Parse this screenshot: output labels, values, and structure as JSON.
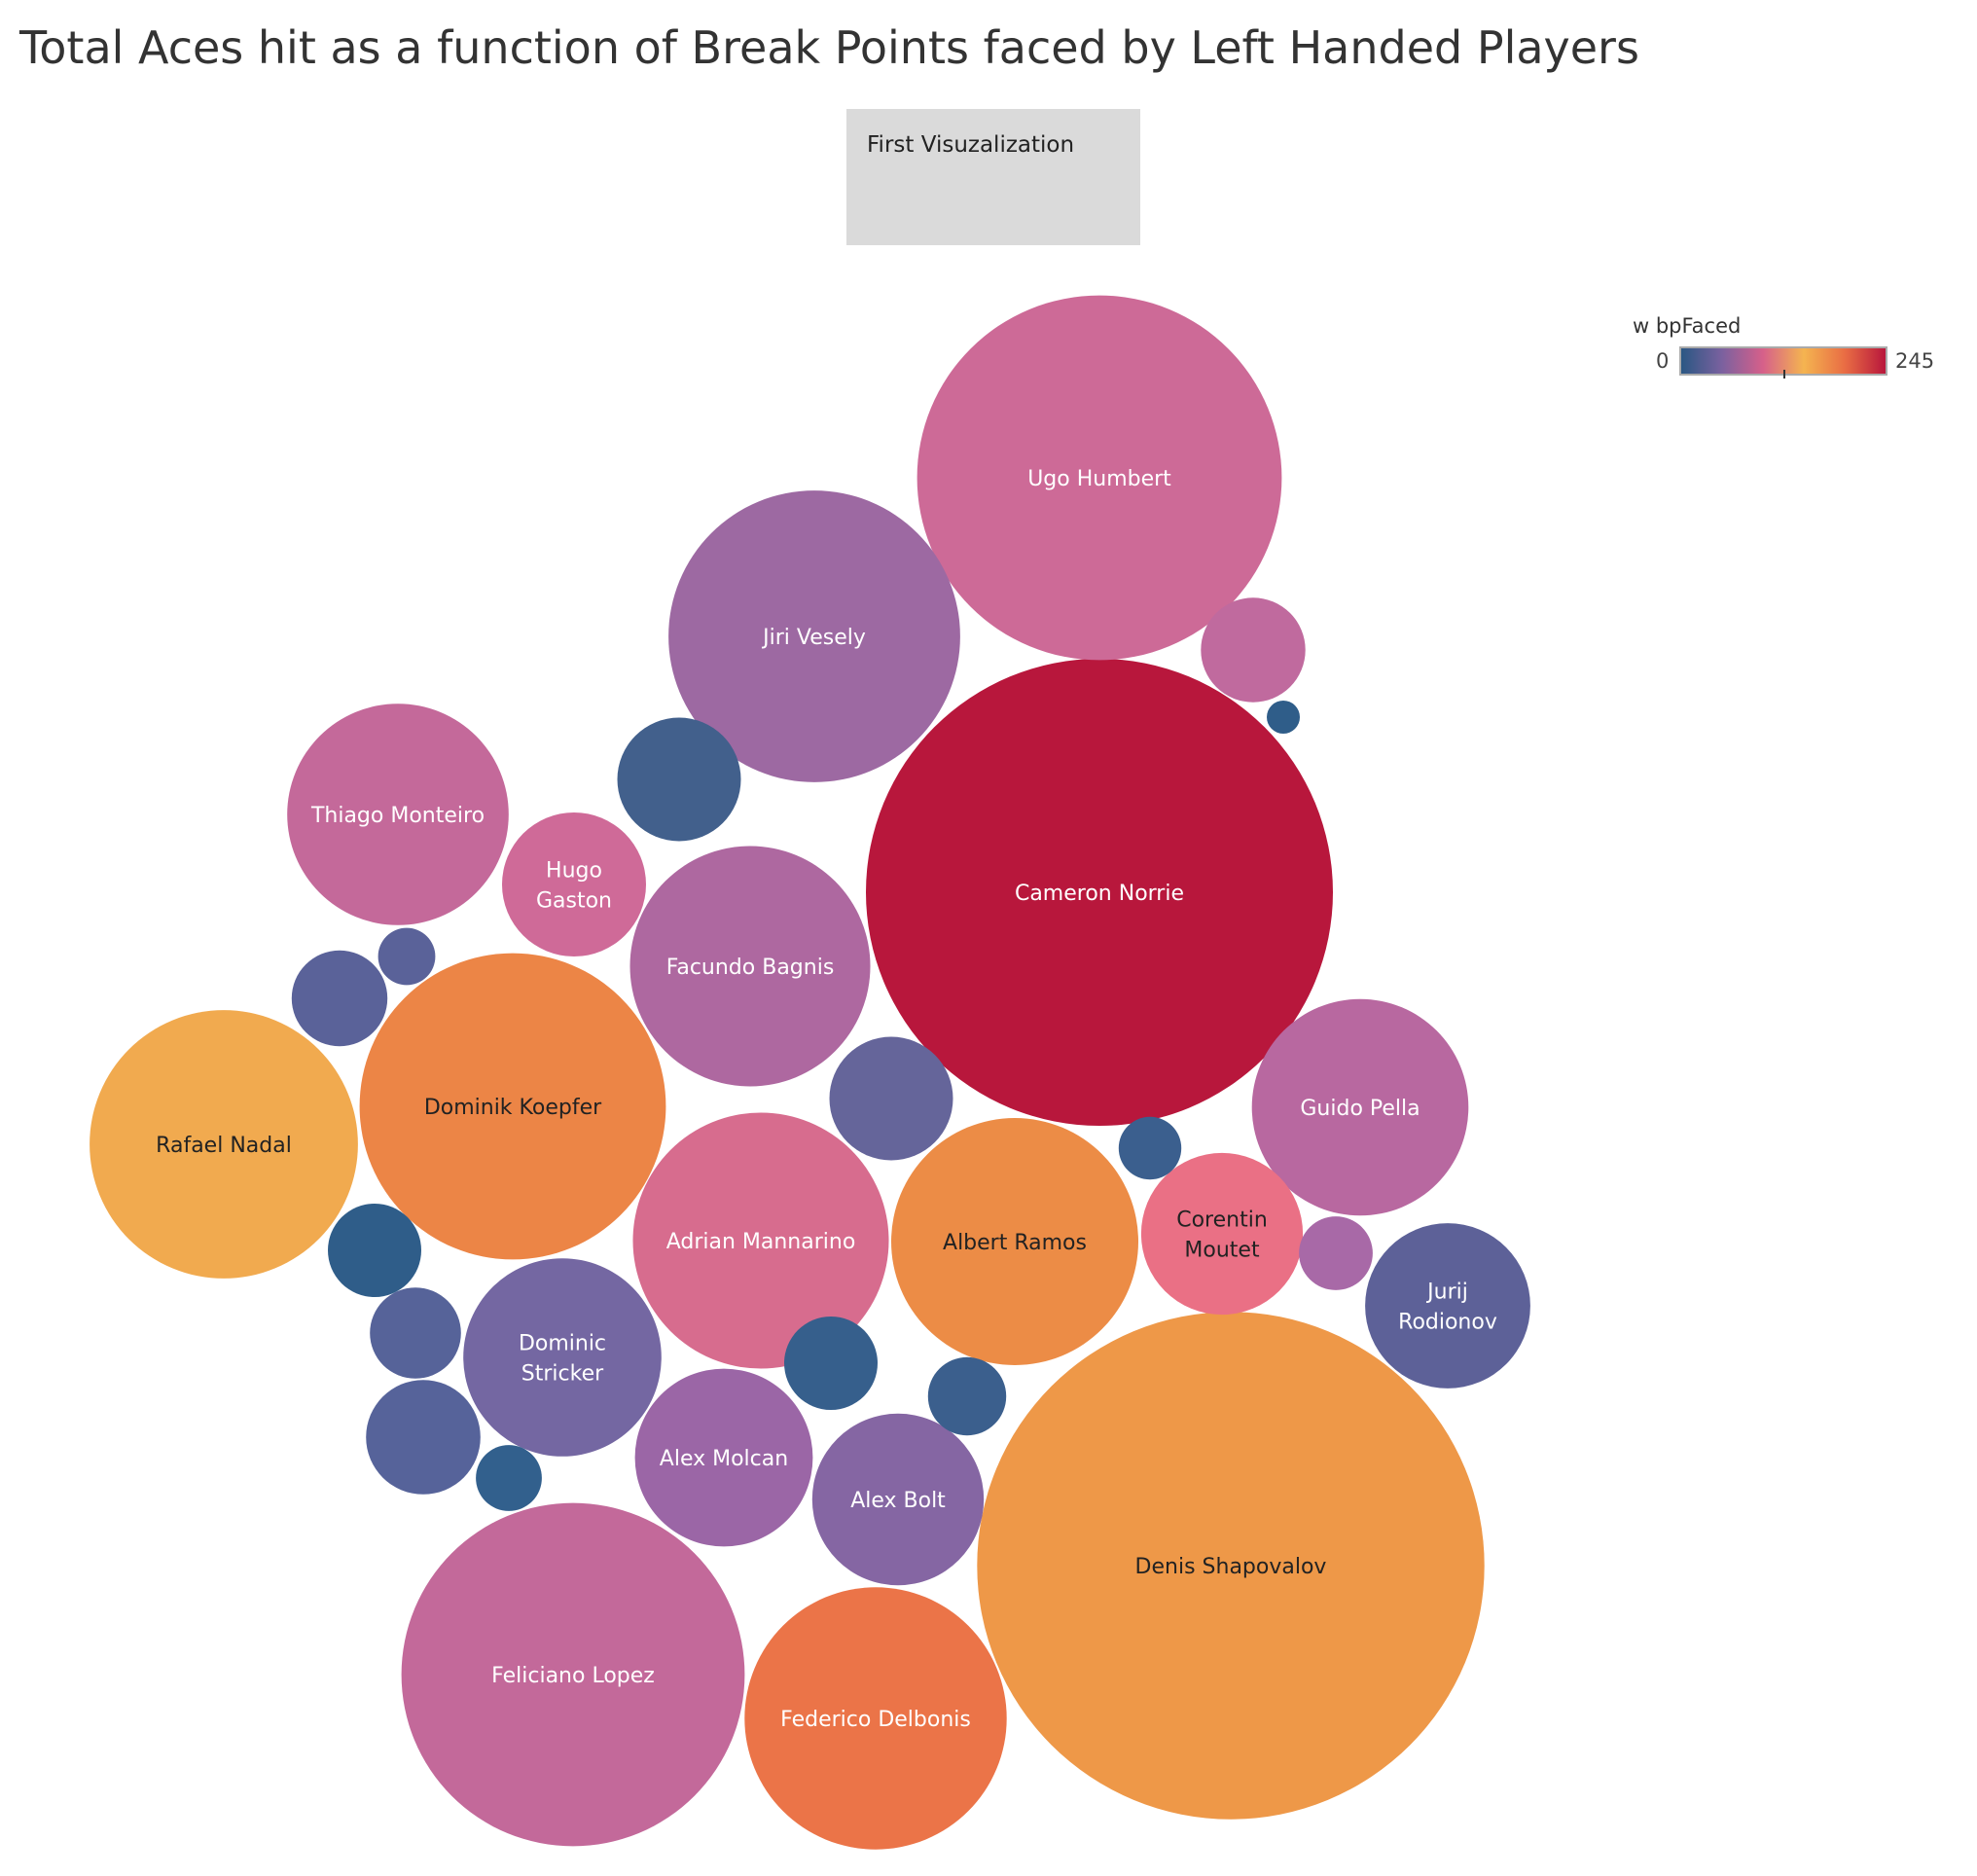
{
  "title": "Total Aces hit as a function of Break Points faced by Left Handed Players",
  "tag_box": {
    "label": "First Visuzalization"
  },
  "legend": {
    "title": "w bpFaced",
    "min_label": "0",
    "max_label": "245"
  },
  "colors": {
    "low": "#2a5783",
    "mid_purple": "#7b619f",
    "pink": "#d6608a",
    "orange": "#f4b450",
    "high": "#b8173c"
  },
  "chart_data": {
    "type": "bubble",
    "title": "Total Aces hit as a function of Break Points faced by Left Handed Players",
    "size_measure": "Total Aces",
    "color_measure": "w bpFaced",
    "color_range": [
      0,
      245
    ],
    "players": [
      {
        "name": "Cameron Norrie",
        "label_lines": [
          "Cameron Norrie"
        ],
        "aces": 1000,
        "bp_faced": 245,
        "color": "#b8173c",
        "text_color": "#ffffff"
      },
      {
        "name": "Denis Shapovalov",
        "label_lines": [
          "Denis Shapovalov"
        ],
        "aces": 1180,
        "bp_faced": 175,
        "color": "#ee9848",
        "text_color": "#222222"
      },
      {
        "name": "Ugo Humbert",
        "label_lines": [
          "Ugo Humbert"
        ],
        "aces": 610,
        "bp_faced": 105,
        "color": "#cd6a97",
        "text_color": "#ffffff"
      },
      {
        "name": "Jiri Vesely",
        "label_lines": [
          "Jiri Vesely"
        ],
        "aces": 390,
        "bp_faced": 75,
        "color": "#9d69a2",
        "text_color": "#ffffff"
      },
      {
        "name": "Feliciano Lopez",
        "label_lines": [
          "Feliciano Lopez"
        ],
        "aces": 540,
        "bp_faced": 100,
        "color": "#c3699a",
        "text_color": "#ffffff"
      },
      {
        "name": "Dominik Koepfer",
        "label_lines": [
          "Dominik Koepfer"
        ],
        "aces": 430,
        "bp_faced": 190,
        "color": "#ec8546",
        "text_color": "#222222"
      },
      {
        "name": "Adrian Mannarino",
        "label_lines": [
          "Adrian Mannarino"
        ],
        "aces": 300,
        "bp_faced": 115,
        "color": "#d76c8e",
        "text_color": "#ffffff"
      },
      {
        "name": "Albert Ramos",
        "label_lines": [
          "Albert Ramos"
        ],
        "aces": 280,
        "bp_faced": 185,
        "color": "#ec8c46",
        "text_color": "#222222"
      },
      {
        "name": "Rafael Nadal",
        "label_lines": [
          "Rafael Nadal"
        ],
        "aces": 330,
        "bp_faced": 150,
        "color": "#f1aa4f",
        "text_color": "#222222"
      },
      {
        "name": "Thiago Monteiro",
        "label_lines": [
          "Thiago Monteiro"
        ],
        "aces": 225,
        "bp_faced": 100,
        "color": "#c4699a",
        "text_color": "#ffffff"
      },
      {
        "name": "Facundo Bagnis",
        "label_lines": [
          "Facundo Bagnis"
        ],
        "aces": 265,
        "bp_faced": 85,
        "color": "#ae68a0",
        "text_color": "#ffffff"
      },
      {
        "name": "Federico Delbonis",
        "label_lines": [
          "Federico Delbonis"
        ],
        "aces": 315,
        "bp_faced": 205,
        "color": "#eb7448",
        "text_color": "#ffffff"
      },
      {
        "name": "Guido Pella",
        "label_lines": [
          "Guido Pella"
        ],
        "aces": 215,
        "bp_faced": 90,
        "color": "#b868a0",
        "text_color": "#ffffff"
      },
      {
        "name": "Dominic Stricker",
        "label_lines": [
          "Dominic",
          "Stricker"
        ],
        "aces": 180,
        "bp_faced": 45,
        "color": "#7467a2",
        "text_color": "#ffffff"
      },
      {
        "name": "Alex Molcan",
        "label_lines": [
          "Alex Molcan"
        ],
        "aces": 145,
        "bp_faced": 65,
        "color": "#9b66a6",
        "text_color": "#ffffff"
      },
      {
        "name": "Alex Bolt",
        "label_lines": [
          "Alex Bolt"
        ],
        "aces": 135,
        "bp_faced": 50,
        "color": "#8566a3",
        "text_color": "#ffffff"
      },
      {
        "name": "Jurij Rodionov",
        "label_lines": [
          "Jurij",
          "Rodionov"
        ],
        "aces": 125,
        "bp_faced": 35,
        "color": "#5d6198",
        "text_color": "#ffffff"
      },
      {
        "name": "Corentin Moutet",
        "label_lines": [
          "Corentin",
          "Moutet"
        ],
        "aces": 120,
        "bp_faced": 130,
        "color": "#ea7085",
        "text_color": "#222222"
      },
      {
        "name": "Hugo Gaston",
        "label_lines": [
          "Hugo",
          "Gaston"
        ],
        "aces": 95,
        "bp_faced": 100,
        "color": "#cf6a98",
        "text_color": "#ffffff"
      },
      {
        "name": "",
        "label_lines": [],
        "aces": 70,
        "bp_faced": 15,
        "color": "#42608c",
        "text_color": "#ffffff"
      },
      {
        "name": "",
        "label_lines": [],
        "aces": 70,
        "bp_faced": 30,
        "color": "#65659a",
        "text_color": "#ffffff"
      },
      {
        "name": "",
        "label_lines": [],
        "aces": 60,
        "bp_faced": 25,
        "color": "#56639a",
        "text_color": "#ffffff"
      },
      {
        "name": "",
        "label_lines": [],
        "aces": 50,
        "bp_faced": 90,
        "color": "#c06a9e",
        "text_color": "#ffffff"
      },
      {
        "name": "",
        "label_lines": [],
        "aces": 42,
        "bp_faced": 25,
        "color": "#5a6299",
        "text_color": "#ffffff"
      },
      {
        "name": "",
        "label_lines": [],
        "aces": 40,
        "bp_faced": 5,
        "color": "#2f5d89",
        "text_color": "#ffffff"
      },
      {
        "name": "",
        "label_lines": [],
        "aces": 40,
        "bp_faced": 10,
        "color": "#365f8c",
        "text_color": "#ffffff"
      },
      {
        "name": "",
        "label_lines": [],
        "aces": 38,
        "bp_faced": 25,
        "color": "#566399",
        "text_color": "#ffffff"
      },
      {
        "name": "",
        "label_lines": [],
        "aces": 28,
        "bp_faced": 10,
        "color": "#3b5f8d",
        "text_color": "#ffffff"
      },
      {
        "name": "",
        "label_lines": [],
        "aces": 25,
        "bp_faced": 85,
        "color": "#a869a7",
        "text_color": "#ffffff"
      },
      {
        "name": "",
        "label_lines": [],
        "aces": 20,
        "bp_faced": 5,
        "color": "#32608d",
        "text_color": "#ffffff"
      },
      {
        "name": "",
        "label_lines": [],
        "aces": 18,
        "bp_faced": 10,
        "color": "#3b5f8e",
        "text_color": "#ffffff"
      },
      {
        "name": "",
        "label_lines": [],
        "aces": 15,
        "bp_faced": 30,
        "color": "#5a6299",
        "text_color": "#ffffff"
      },
      {
        "name": "",
        "label_lines": [],
        "aces": 5,
        "bp_faced": 5,
        "color": "#2f5d89",
        "text_color": "#ffffff"
      }
    ]
  }
}
